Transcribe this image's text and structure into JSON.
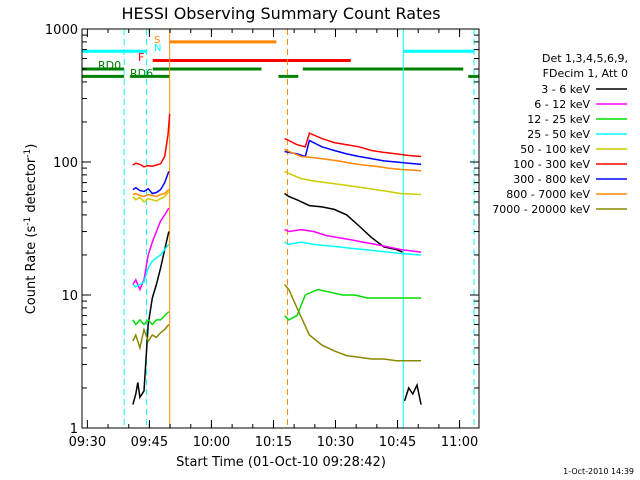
{
  "chart_data": {
    "type": "line",
    "title": "HESSI Observing Summary Count Rates",
    "xlabel": "Start Time (01-Oct-10 09:28:42)",
    "ylabel": {
      "prefix": "Count Rate (s",
      "sup1": "-1",
      "mid": " detector",
      "sup2": "-1",
      "suffix": ")"
    },
    "footer": "1-Oct-2010 14:39",
    "yscale": "log",
    "ylim": [
      1,
      1000
    ],
    "xlim_minutes": [
      0,
      96
    ],
    "x_tick_labels": [
      "09:30",
      "09:45",
      "10:00",
      "10:15",
      "10:30",
      "10:45",
      "11:00"
    ],
    "x_tick_positions_minutes": [
      1.3,
      16.3,
      31.3,
      46.3,
      61.3,
      76.3,
      91.3
    ],
    "y_tick_labels": [
      {
        "label": "1",
        "value": 1
      },
      {
        "label": "10",
        "value": 10
      },
      {
        "label": "100",
        "value": 100
      },
      {
        "label": "1000",
        "value": 1000
      }
    ],
    "legend": {
      "header": [
        "Det 1,3,4,5,6,9,",
        "FDecim 1, Att 0"
      ],
      "entries": [
        {
          "label": "3 - 6 keV",
          "color": "#000000"
        },
        {
          "label": "6 - 12 keV",
          "color": "#ff00ff"
        },
        {
          "label": "12 - 25 keV",
          "color": "#00dd00"
        },
        {
          "label": "25 - 50 keV",
          "color": "#00ffff"
        },
        {
          "label": "50 - 100 keV",
          "color": "#cccc00"
        },
        {
          "label": "100 - 300 keV",
          "color": "#ff0000"
        },
        {
          "label": "300 - 800 keV",
          "color": "#0000ff"
        },
        {
          "label": "800 - 7000 keV",
          "color": "#ff8800"
        },
        {
          "label": "7000 - 20000 keV",
          "color": "#888800"
        }
      ]
    },
    "flag_labels": [
      {
        "label": "S",
        "color": "#ff8800"
      },
      {
        "label": "N",
        "color": "#00ffff"
      },
      {
        "label": "F",
        "color": "#ff0000"
      },
      {
        "label": "RD0",
        "color": "#008000"
      },
      {
        "label": "RD6",
        "color": "#008000"
      }
    ],
    "flag_bars": [
      {
        "name": "S",
        "color": "#ff8800",
        "y": 800,
        "x0": 21.2,
        "x1": 47.0
      },
      {
        "name": "F",
        "color": "#ff0000",
        "y": 580,
        "x0": 17.1,
        "x1": 65.0
      },
      {
        "name": "RD6",
        "color": "#008000",
        "y": 440,
        "x0": 0.0,
        "x1": 10.2
      },
      {
        "name": "RD6",
        "color": "#008000",
        "y": 440,
        "x0": 11.6,
        "x1": 21.2
      },
      {
        "name": "RD6",
        "color": "#008000",
        "y": 440,
        "x0": 47.5,
        "x1": 52.3
      },
      {
        "name": "RD6",
        "color": "#008000",
        "y": 440,
        "x0": 93.4,
        "x1": 96.0
      },
      {
        "name": "RD0",
        "color": "#008000",
        "y": 500,
        "x0": 0.0,
        "x1": 10.2
      },
      {
        "name": "RD0",
        "color": "#008000",
        "y": 500,
        "x0": 17.1,
        "x1": 43.4
      },
      {
        "name": "RD0",
        "color": "#008000",
        "y": 500,
        "x0": 53.4,
        "x1": 92.2
      },
      {
        "name": "SAA",
        "color": "#00ffff",
        "y": 680,
        "x0": 0.0,
        "x1": 15.6
      },
      {
        "name": "SAA",
        "color": "#00ffff",
        "y": 680,
        "x0": 77.7,
        "x1": 94.8
      }
    ],
    "vertical_lines": [
      {
        "x": 10.2,
        "color": "#00ffff",
        "style": "dashed"
      },
      {
        "x": 15.6,
        "color": "#00ffff",
        "style": "dashed"
      },
      {
        "x": 21.2,
        "color": "#ff8800",
        "style": "solid"
      },
      {
        "x": 49.7,
        "color": "#ff8800",
        "style": "dashed"
      },
      {
        "x": 77.7,
        "color": "#00ffff",
        "style": "solid"
      },
      {
        "x": 94.8,
        "color": "#00ffff",
        "style": "dashed"
      }
    ],
    "series": [
      {
        "name": "3 - 6 keV",
        "color": "#000000",
        "segments": [
          {
            "x": [
              12.3,
              13.0,
              13.5,
              14.0,
              15.0,
              16.0,
              17.0,
              18.0,
              19.0,
              20.0,
              21.0
            ],
            "y": [
              1.5,
              1.8,
              2.2,
              1.7,
              1.9,
              6.0,
              9.5,
              12.0,
              16.0,
              22.0,
              30.0
            ]
          },
          {
            "x": [
              49.0,
              50.0,
              52.0,
              55.0,
              58.0,
              61.0,
              64.0,
              67.0,
              70.0,
              73.0,
              76.0,
              77.5
            ],
            "y": [
              58.0,
              55.0,
              52.0,
              47.0,
              46.0,
              44.0,
              40.0,
              33.0,
              27.0,
              23.0,
              22.0,
              21.0
            ]
          },
          {
            "x": [
              78.0,
              79.0,
              80.0,
              81.0,
              82.0
            ],
            "y": [
              1.6,
              2.0,
              1.8,
              2.1,
              1.5
            ]
          }
        ]
      },
      {
        "name": "6 - 12 keV",
        "color": "#ff00ff",
        "segments": [
          {
            "x": [
              12.3,
              13.0,
              14.0,
              15.0,
              16.0,
              17.0,
              18.0,
              19.0,
              20.0,
              21.0
            ],
            "y": [
              12.0,
              13.0,
              11.0,
              13.0,
              20.0,
              25.0,
              30.0,
              36.0,
              40.0,
              45.0
            ]
          },
          {
            "x": [
              49.0,
              50.0,
              53.0,
              56.0,
              59.0,
              62.0,
              65.0,
              68.0,
              71.0,
              74.0,
              77.0,
              82.0
            ],
            "y": [
              31.0,
              30.0,
              31.0,
              30.0,
              28.0,
              27.0,
              26.0,
              25.0,
              24.0,
              23.0,
              22.0,
              21.0
            ]
          }
        ]
      },
      {
        "name": "12 - 25 keV",
        "color": "#00dd00",
        "segments": [
          {
            "x": [
              12.3,
              13.0,
              14.0,
              15.0,
              16.0,
              17.0,
              18.0,
              19.0,
              20.0,
              21.0
            ],
            "y": [
              6.5,
              6.0,
              6.5,
              6.0,
              6.5,
              6.0,
              6.5,
              6.5,
              7.0,
              7.5
            ]
          },
          {
            "x": [
              49.0,
              50.0,
              52.0,
              54.0,
              57.0,
              60.0,
              63.0,
              66.0,
              69.0,
              72.0,
              75.0,
              78.0,
              82.0
            ],
            "y": [
              7.0,
              6.5,
              7.0,
              10.0,
              11.0,
              10.5,
              10.0,
              10.0,
              9.5,
              9.5,
              9.5,
              9.5,
              9.5
            ]
          }
        ]
      },
      {
        "name": "25 - 50 keV",
        "color": "#00ffff",
        "segments": [
          {
            "x": [
              12.3,
              13.0,
              14.0,
              15.0,
              16.0,
              17.0,
              18.0,
              19.0,
              20.0,
              21.0
            ],
            "y": [
              12.0,
              11.5,
              12.0,
              12.5,
              16.0,
              18.0,
              19.0,
              20.0,
              22.0,
              24.0
            ]
          },
          {
            "x": [
              49.0,
              50.0,
              53.0,
              56.0,
              59.0,
              62.0,
              65.0,
              68.0,
              71.0,
              74.0,
              77.0,
              82.0
            ],
            "y": [
              25.0,
              24.0,
              25.0,
              24.0,
              23.5,
              23.0,
              22.5,
              22.0,
              21.5,
              21.0,
              20.5,
              20.0
            ]
          }
        ]
      },
      {
        "name": "50 - 100 keV",
        "color": "#cccc00",
        "segments": [
          {
            "x": [
              12.3,
              13.0,
              14.0,
              15.0,
              16.0,
              17.0,
              18.0,
              19.0,
              20.0,
              21.0
            ],
            "y": [
              55.0,
              52.0,
              54.0,
              50.0,
              53.0,
              52.0,
              51.0,
              53.0,
              55.0,
              60.0
            ]
          },
          {
            "x": [
              49.0,
              50.0,
              53.0,
              56.0,
              59.0,
              62.0,
              65.0,
              68.0,
              71.0,
              74.0,
              77.0,
              82.0
            ],
            "y": [
              85.0,
              82.0,
              75.0,
              72.0,
              70.0,
              68.0,
              66.0,
              64.0,
              62.0,
              60.0,
              58.0,
              57.0
            ]
          }
        ]
      },
      {
        "name": "100 - 300 keV",
        "color": "#ff0000",
        "segments": [
          {
            "x": [
              12.3,
              13.0,
              14.0,
              15.0,
              16.0,
              17.0,
              18.0,
              19.0,
              20.0,
              20.8,
              21.2
            ],
            "y": [
              95.0,
              98.0,
              96.0,
              92.0,
              94.0,
              93.0,
              95.0,
              97.0,
              110.0,
              160.0,
              230.0
            ]
          },
          {
            "x": [
              49.0,
              50.0,
              52.0,
              54.0,
              55.0,
              58.0,
              61.0,
              64.0,
              67.0,
              70.0,
              73.0,
              76.0,
              79.0,
              82.0
            ],
            "y": [
              150.0,
              145.0,
              135.0,
              130.0,
              165.0,
              150.0,
              140.0,
              135.0,
              130.0,
              122.0,
              118.0,
              115.0,
              112.0,
              110.0
            ]
          }
        ]
      },
      {
        "name": "300 - 800 keV",
        "color": "#0000ff",
        "segments": [
          {
            "x": [
              12.3,
              13.0,
              14.0,
              15.0,
              16.0,
              17.0,
              18.0,
              19.0,
              20.0,
              21.0
            ],
            "y": [
              62.0,
              64.0,
              61.0,
              60.0,
              63.0,
              58.0,
              59.0,
              62.0,
              70.0,
              85.0
            ]
          },
          {
            "x": [
              49.0,
              50.0,
              52.0,
              54.0,
              55.0,
              58.0,
              61.0,
              64.0,
              67.0,
              70.0,
              73.0,
              76.0,
              79.0,
              82.0
            ],
            "y": [
              120.0,
              118.0,
              115.0,
              110.0,
              145.0,
              130.0,
              122.0,
              115.0,
              110.0,
              106.0,
              102.0,
              100.0,
              98.0,
              96.0
            ]
          }
        ]
      },
      {
        "name": "800 - 7000 keV",
        "color": "#ff8800",
        "segments": [
          {
            "x": [
              12.3,
              13.0,
              14.0,
              15.0,
              16.0,
              17.0,
              18.0,
              19.0,
              20.0,
              21.0
            ],
            "y": [
              57.0,
              58.0,
              56.0,
              55.0,
              57.0,
              56.0,
              55.0,
              57.0,
              58.0,
              62.0
            ]
          },
          {
            "x": [
              49.0,
              50.0,
              53.0,
              56.0,
              59.0,
              62.0,
              65.0,
              68.0,
              71.0,
              74.0,
              77.0,
              82.0
            ],
            "y": [
              125.0,
              120.0,
              110.0,
              108.0,
              105.0,
              102.0,
              98.0,
              95.0,
              93.0,
              90.0,
              88.0,
              86.0
            ]
          }
        ]
      },
      {
        "name": "7000 - 20000 keV",
        "color": "#888800",
        "segments": [
          {
            "x": [
              12.3,
              13.0,
              14.0,
              15.0,
              16.0,
              17.0,
              18.0,
              19.0,
              20.0,
              21.0
            ],
            "y": [
              4.5,
              5.0,
              4.0,
              5.5,
              4.5,
              5.0,
              4.8,
              5.2,
              5.5,
              6.0
            ]
          },
          {
            "x": [
              49.0,
              50.0,
              52.0,
              55.0,
              58.0,
              61.0,
              64.0,
              67.0,
              70.0,
              73.0,
              76.0,
              79.0,
              82.0
            ],
            "y": [
              12.0,
              11.0,
              8.0,
              5.0,
              4.2,
              3.8,
              3.5,
              3.4,
              3.3,
              3.3,
              3.2,
              3.2,
              3.2
            ]
          }
        ]
      }
    ]
  }
}
